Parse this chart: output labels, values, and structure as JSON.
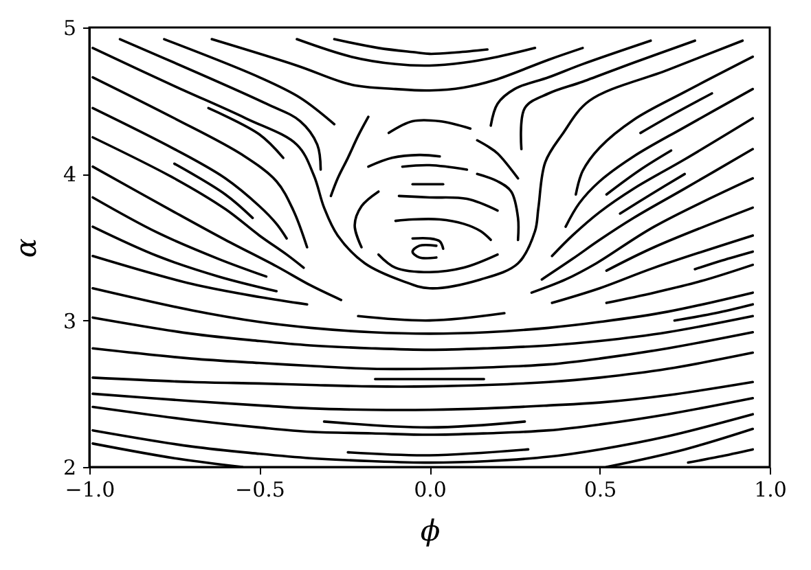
{
  "chart_data": {
    "type": "line",
    "xlabel": "ϕ",
    "ylabel": "α",
    "xlim": [
      -1,
      1
    ],
    "ylim": [
      2,
      5
    ],
    "xticks": [
      {
        "value": -1,
        "label": "−1.0"
      },
      {
        "value": -0.5,
        "label": "−0.5"
      },
      {
        "value": 0,
        "label": "0.0"
      },
      {
        "value": 0.5,
        "label": "0.5"
      },
      {
        "value": 1,
        "label": "1.0"
      }
    ],
    "yticks": [
      2,
      3,
      4,
      5
    ],
    "series": [
      {
        "color": "#000000",
        "x": [
          0.17,
          0.08,
          0,
          -0.04,
          -0.15,
          -0.28
        ],
        "values": [
          4.85,
          4.83,
          4.82,
          4.83,
          4.86,
          4.92
        ]
      },
      {
        "color": "#000000",
        "x": [
          0.31,
          0.2,
          0.1,
          0,
          -0.1,
          -0.23,
          -0.39
        ],
        "values": [
          4.86,
          4.8,
          4.76,
          4.74,
          4.75,
          4.8,
          4.92
        ]
      },
      {
        "color": "#000000",
        "x": [
          0.45,
          0.35,
          0.19,
          0.1,
          0,
          -0.1,
          -0.23,
          -0.39,
          -0.64
        ],
        "values": [
          4.86,
          4.78,
          4.64,
          4.59,
          4.57,
          4.58,
          4.61,
          4.74,
          4.92
        ]
      },
      {
        "color": "#000000",
        "x": [
          0.65,
          0.45,
          0.35,
          0.25,
          0.2,
          0.18
        ],
        "values": [
          4.91,
          4.75,
          4.66,
          4.58,
          4.48,
          4.33
        ]
      },
      {
        "color": "#000000",
        "x": [
          0.78,
          0.6,
          0.45,
          0.35,
          0.28,
          0.27
        ],
        "values": [
          4.91,
          4.76,
          4.63,
          4.55,
          4.45,
          4.17
        ]
      },
      {
        "color": "#000000",
        "x": [
          0.92,
          0.7,
          0.47,
          0.39,
          0.34,
          0.32,
          0.31,
          0.26,
          0.15,
          0,
          -0.08,
          -0.19,
          -0.27,
          -0.31,
          -0.34,
          -0.39,
          -0.54,
          -0.75,
          -0.99
        ],
        "values": [
          4.91,
          4.71,
          4.5,
          4.27,
          4.08,
          3.77,
          3.61,
          3.39,
          3.28,
          3.22,
          3.27,
          3.39,
          3.58,
          3.77,
          3.99,
          4.2,
          4.38,
          4.6,
          4.86
        ]
      },
      {
        "color": "#000000",
        "x": [
          0.95,
          0.75,
          0.6,
          0.5,
          0.45,
          0.43
        ],
        "values": [
          4.8,
          4.56,
          4.37,
          4.18,
          4.02,
          3.86
        ]
      },
      {
        "color": "#000000",
        "x": [
          0.83,
          0.71,
          0.62
        ],
        "values": [
          4.55,
          4.4,
          4.28
        ]
      },
      {
        "color": "#000000",
        "x": [
          0.95,
          0.75,
          0.6,
          0.5,
          0.44,
          0.4
        ],
        "values": [
          4.58,
          4.32,
          4.12,
          3.95,
          3.8,
          3.64
        ]
      },
      {
        "color": "#000000",
        "x": [
          0.71,
          0.62,
          0.52
        ],
        "values": [
          4.16,
          4.03,
          3.86
        ]
      },
      {
        "color": "#000000",
        "x": [
          0.95,
          0.75,
          0.6,
          0.5,
          0.42,
          0.36
        ],
        "values": [
          4.38,
          4.1,
          3.9,
          3.74,
          3.58,
          3.44
        ]
      },
      {
        "color": "#000000",
        "x": [
          0.75,
          0.65,
          0.56
        ],
        "values": [
          4.0,
          3.86,
          3.73
        ]
      },
      {
        "color": "#000000",
        "x": [
          0.95,
          0.75,
          0.6,
          0.5,
          0.42,
          0.33
        ],
        "values": [
          4.17,
          3.9,
          3.7,
          3.55,
          3.42,
          3.28
        ]
      },
      {
        "color": "#000000",
        "x": [
          0.95,
          0.66,
          0.49,
          0.4,
          0.3
        ],
        "values": [
          3.97,
          3.64,
          3.39,
          3.28,
          3.19
        ]
      },
      {
        "color": "#000000",
        "x": [
          0.95,
          0.66,
          0.52
        ],
        "values": [
          3.77,
          3.5,
          3.34
        ]
      },
      {
        "color": "#000000",
        "x": [
          0.95,
          0.66,
          0.5,
          0.36
        ],
        "values": [
          3.58,
          3.36,
          3.22,
          3.12
        ]
      },
      {
        "color": "#000000",
        "x": [
          0.95,
          0.86,
          0.78
        ],
        "values": [
          3.47,
          3.41,
          3.35
        ]
      },
      {
        "color": "#000000",
        "x": [
          0.95,
          0.8,
          0.66,
          0.52
        ],
        "values": [
          3.38,
          3.27,
          3.19,
          3.12
        ]
      },
      {
        "color": "#000000",
        "x": [
          0.95,
          0.84,
          0.72
        ],
        "values": [
          3.11,
          3.05,
          3.0
        ]
      },
      {
        "color": "#000000",
        "x": [
          -0.28,
          -0.38,
          -0.5,
          -0.78
        ],
        "values": [
          4.34,
          4.52,
          4.66,
          4.92
        ]
      },
      {
        "color": "#000000",
        "x": [
          -0.32,
          -0.33,
          -0.38,
          -0.48,
          -0.91
        ],
        "values": [
          4.03,
          4.2,
          4.36,
          4.48,
          4.92
        ]
      },
      {
        "color": "#000000",
        "x": [
          -0.43,
          -0.5,
          -0.65
        ],
        "values": [
          4.11,
          4.27,
          4.45
        ]
      },
      {
        "color": "#000000",
        "x": [
          -0.36,
          -0.4,
          -0.45,
          -0.55,
          -0.75,
          -0.99
        ],
        "values": [
          3.5,
          3.75,
          3.95,
          4.13,
          4.38,
          4.66
        ]
      },
      {
        "color": "#000000",
        "x": [
          -0.42,
          -0.45,
          -0.5,
          -0.6,
          -0.75,
          -0.99
        ],
        "values": [
          3.56,
          3.66,
          3.78,
          3.97,
          4.17,
          4.45
        ]
      },
      {
        "color": "#000000",
        "x": [
          -0.52,
          -0.6,
          -0.75
        ],
        "values": [
          3.7,
          3.86,
          4.07
        ]
      },
      {
        "color": "#000000",
        "x": [
          -0.37,
          -0.42,
          -0.5,
          -0.6,
          -0.75,
          -0.99
        ],
        "values": [
          3.36,
          3.45,
          3.58,
          3.76,
          3.97,
          4.25
        ]
      },
      {
        "color": "#000000",
        "x": [
          -0.26,
          -0.35,
          -0.45,
          -0.6,
          -0.75,
          -0.99
        ],
        "values": [
          3.14,
          3.24,
          3.37,
          3.55,
          3.74,
          4.05
        ]
      },
      {
        "color": "#000000",
        "x": [
          -0.48,
          -0.62,
          -0.8,
          -0.99
        ],
        "values": [
          3.3,
          3.42,
          3.6,
          3.84
        ]
      },
      {
        "color": "#000000",
        "x": [
          -0.45,
          -0.62,
          -0.8,
          -0.99
        ],
        "values": [
          3.2,
          3.3,
          3.44,
          3.64
        ]
      },
      {
        "color": "#000000",
        "x": [
          -0.36,
          -0.5,
          -0.7,
          -0.99
        ],
        "values": [
          3.11,
          3.16,
          3.25,
          3.44
        ]
      },
      {
        "color": "#000000",
        "x": [
          -0.29,
          -0.27,
          -0.24,
          -0.21,
          -0.18
        ],
        "values": [
          3.85,
          3.97,
          4.11,
          4.26,
          4.39
        ]
      },
      {
        "color": "#000000",
        "x": [
          -0.12,
          -0.05,
          0.03,
          0.12
        ],
        "values": [
          4.28,
          4.36,
          4.36,
          4.31
        ]
      },
      {
        "color": "#000000",
        "x": [
          0.14,
          0.17,
          0.2,
          0.26
        ],
        "values": [
          4.23,
          4.19,
          4.14,
          3.97
        ]
      },
      {
        "color": "#000000",
        "x": [
          -0.18,
          -0.11,
          -0.03,
          0.03
        ],
        "values": [
          4.05,
          4.11,
          4.13,
          4.12
        ]
      },
      {
        "color": "#000000",
        "x": [
          -0.08,
          0,
          0.11
        ],
        "values": [
          4.05,
          4.06,
          4.03
        ]
      },
      {
        "color": "#000000",
        "x": [
          0.14,
          0.2,
          0.24,
          0.26,
          0.26
        ],
        "values": [
          4.0,
          3.95,
          3.88,
          3.7,
          3.55
        ]
      },
      {
        "color": "#000000",
        "x": [
          -0.05,
          0.04
        ],
        "values": [
          3.93,
          3.93
        ]
      },
      {
        "color": "#000000",
        "x": [
          -0.09,
          0,
          0.11,
          0.2
        ],
        "values": [
          3.85,
          3.84,
          3.83,
          3.75
        ]
      },
      {
        "color": "#000000",
        "x": [
          -0.1,
          -0.05,
          0.03,
          0.1,
          0.15,
          0.18
        ],
        "values": [
          3.68,
          3.69,
          3.69,
          3.66,
          3.61,
          3.55
        ]
      },
      {
        "color": "#000000",
        "x": [
          -0.05,
          0,
          0.03,
          0.04
        ],
        "values": [
          3.56,
          3.56,
          3.54,
          3.49
        ]
      },
      {
        "color": "#000000",
        "x": [
          0.02,
          -0.03,
          -0.05,
          -0.03,
          0.02
        ],
        "values": [
          3.51,
          3.51,
          3.47,
          3.43,
          3.43
        ]
      },
      {
        "color": "#000000",
        "x": [
          -0.2,
          -0.22,
          -0.2,
          -0.15
        ],
        "values": [
          3.5,
          3.65,
          3.78,
          3.88
        ]
      },
      {
        "color": "#000000",
        "x": [
          0.2,
          0.1,
          0,
          -0.1,
          -0.15
        ],
        "values": [
          3.45,
          3.36,
          3.33,
          3.36,
          3.45
        ]
      },
      {
        "color": "#000000",
        "x": [
          0.22,
          0,
          -0.21
        ],
        "values": [
          3.05,
          3.0,
          3.03
        ]
      },
      {
        "color": "#000000",
        "x": [
          0.95,
          0.7,
          0.5,
          0.35,
          0.17,
          0,
          -0.17,
          -0.35,
          -0.5,
          -0.7,
          -0.99
        ],
        "values": [
          3.19,
          3.06,
          2.99,
          2.95,
          2.92,
          2.91,
          2.92,
          2.95,
          2.99,
          3.07,
          3.22
        ]
      },
      {
        "color": "#000000",
        "x": [
          0.95,
          0.7,
          0.5,
          0.35,
          0.17,
          0,
          -0.17,
          -0.35,
          -0.5,
          -0.7,
          -0.99
        ],
        "values": [
          3.03,
          2.92,
          2.86,
          2.83,
          2.81,
          2.8,
          2.81,
          2.83,
          2.86,
          2.91,
          3.02
        ]
      },
      {
        "color": "#000000",
        "x": [
          0.95,
          0.7,
          0.5,
          0.35,
          0.17,
          0,
          -0.17,
          -0.35,
          -0.5,
          -0.7,
          -0.99
        ],
        "values": [
          2.92,
          2.81,
          2.74,
          2.7,
          2.68,
          2.67,
          2.67,
          2.69,
          2.71,
          2.74,
          2.81
        ]
      },
      {
        "color": "#000000",
        "x": [
          0.16,
          0,
          -0.16
        ],
        "values": [
          2.6,
          2.6,
          2.6
        ]
      },
      {
        "color": "#000000",
        "x": [
          0.95,
          0.7,
          0.5,
          0.35,
          0.17,
          0,
          -0.17,
          -0.35,
          -0.5,
          -0.7,
          -0.99
        ],
        "values": [
          2.78,
          2.67,
          2.61,
          2.58,
          2.56,
          2.55,
          2.55,
          2.56,
          2.57,
          2.58,
          2.61
        ]
      },
      {
        "color": "#000000",
        "x": [
          0.95,
          0.7,
          0.5,
          0.35,
          0.17,
          0,
          -0.17,
          -0.35,
          -0.5,
          -0.7,
          -0.99
        ],
        "values": [
          2.58,
          2.49,
          2.44,
          2.42,
          2.4,
          2.39,
          2.39,
          2.4,
          2.42,
          2.45,
          2.5
        ]
      },
      {
        "color": "#000000",
        "x": [
          0.28,
          0,
          -0.31
        ],
        "values": [
          2.31,
          2.27,
          2.31
        ]
      },
      {
        "color": "#000000",
        "x": [
          0.95,
          0.7,
          0.5,
          0.35,
          0.17,
          0,
          -0.17,
          -0.35,
          -0.5,
          -0.7,
          -0.99
        ],
        "values": [
          2.47,
          2.36,
          2.29,
          2.25,
          2.23,
          2.22,
          2.23,
          2.24,
          2.27,
          2.32,
          2.41
        ]
      },
      {
        "color": "#000000",
        "x": [
          0.29,
          0,
          -0.24
        ],
        "values": [
          2.12,
          2.08,
          2.1
        ]
      },
      {
        "color": "#000000",
        "x": [
          0.95,
          0.7,
          0.5,
          0.35,
          0.17,
          0,
          -0.17,
          -0.35,
          -0.5,
          -0.7,
          -0.99
        ],
        "values": [
          2.36,
          2.21,
          2.12,
          2.07,
          2.04,
          2.03,
          2.04,
          2.06,
          2.09,
          2.14,
          2.25
        ]
      },
      {
        "color": "#000000",
        "x": [
          -0.55,
          -0.75,
          -0.99
        ],
        "values": [
          2.0,
          2.06,
          2.16
        ]
      },
      {
        "color": "#000000",
        "x": [
          0.95,
          0.75,
          0.52
        ],
        "values": [
          2.26,
          2.12,
          2.0
        ]
      },
      {
        "color": "#000000",
        "x": [
          0.95,
          0.85,
          0.76
        ],
        "values": [
          2.12,
          2.07,
          2.03
        ]
      }
    ]
  }
}
